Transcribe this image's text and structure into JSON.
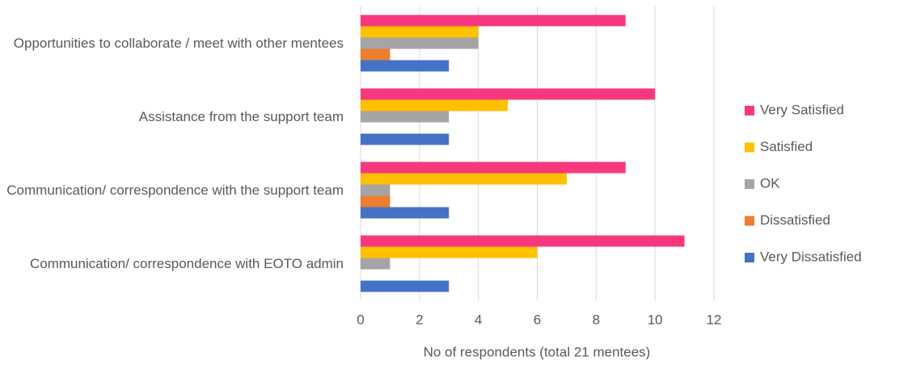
{
  "chart_data": {
    "type": "bar",
    "orientation": "horizontal",
    "categories": [
      "Opportunities to collaborate / meet with other mentees",
      "Assistance from the support team",
      "Communication/ correspondence with the support team",
      "Communication/ correspondence with EOTO admin"
    ],
    "series": [
      {
        "name": "Very Satisfied",
        "color": "#f7387f",
        "values": [
          9,
          10,
          9,
          11
        ]
      },
      {
        "name": "Satisfied",
        "color": "#ffc000",
        "values": [
          4,
          5,
          7,
          6
        ]
      },
      {
        "name": "OK",
        "color": "#a5a5a5",
        "values": [
          4,
          3,
          1,
          1
        ]
      },
      {
        "name": "Dissatisfied",
        "color": "#ed7d31",
        "values": [
          1,
          0,
          1,
          0
        ]
      },
      {
        "name": "Very Dissatisfied",
        "color": "#4472c4",
        "values": [
          3,
          3,
          3,
          3
        ]
      }
    ],
    "xlabel": "No of respondents (total 21 mentees)",
    "xlim": [
      0,
      12
    ],
    "xticks": [
      0,
      2,
      4,
      6,
      8,
      10,
      12
    ],
    "grid": true,
    "legend": "right"
  }
}
